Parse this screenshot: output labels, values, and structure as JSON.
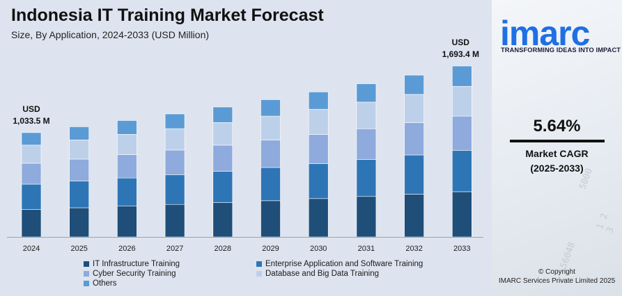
{
  "header": {
    "title": "Indonesia IT Training Market Forecast",
    "subtitle": "Size, By Application, 2024-2033 (USD Million)"
  },
  "chart_data": {
    "type": "bar",
    "stacked": true,
    "categories": [
      "2024",
      "2025",
      "2026",
      "2027",
      "2028",
      "2029",
      "2030",
      "2031",
      "2032",
      "2033"
    ],
    "totals": [
      1033.5,
      1091.9,
      1153.5,
      1218.6,
      1287.3,
      1359.9,
      1436.6,
      1517.6,
      1603.2,
      1693.4
    ],
    "series": [
      {
        "name": "IT Infrastructure Training",
        "color": "#1f4e79",
        "values": [
          273,
          289,
          305,
          322,
          340,
          359,
          380,
          401,
          424,
          448
        ]
      },
      {
        "name": "Enterprise Application and Software Training",
        "color": "#2e75b6",
        "values": [
          250,
          264,
          279,
          295,
          311,
          329,
          347,
          367,
          388,
          410
        ]
      },
      {
        "name": "Cyber Security Training",
        "color": "#8faadc",
        "values": [
          207,
          218,
          231,
          244,
          258,
          272,
          288,
          304,
          321,
          339
        ]
      },
      {
        "name": "Database and Big Data Training",
        "color": "#bdd0ea",
        "values": [
          180,
          190,
          201,
          212,
          224,
          237,
          250,
          264,
          279,
          295
        ]
      },
      {
        "name": "Others",
        "color": "#5b9bd5",
        "values": [
          123.5,
          130.9,
          137.5,
          145.6,
          154.3,
          162.9,
          171.6,
          181.6,
          191.2,
          201.4
        ]
      }
    ],
    "annotations": [
      {
        "category": "2024",
        "line1": "USD",
        "line2": "1,033.5 M"
      },
      {
        "category": "2033",
        "line1": "USD",
        "line2": "1,693.4 M"
      }
    ],
    "grid": false,
    "legend_position": "bottom"
  },
  "side_panel": {
    "brand": "imarc",
    "brand_color": "#1f6fe5",
    "tagline": "TRANSFORMING IDEAS INTO IMPACT",
    "cagr_value": "5.64%",
    "cagr_label": "Market CAGR",
    "cagr_period": "(2025-2033)",
    "copyright_line1": "© Copyright",
    "copyright_line2": "IMARC Services Private Limited 2025"
  }
}
